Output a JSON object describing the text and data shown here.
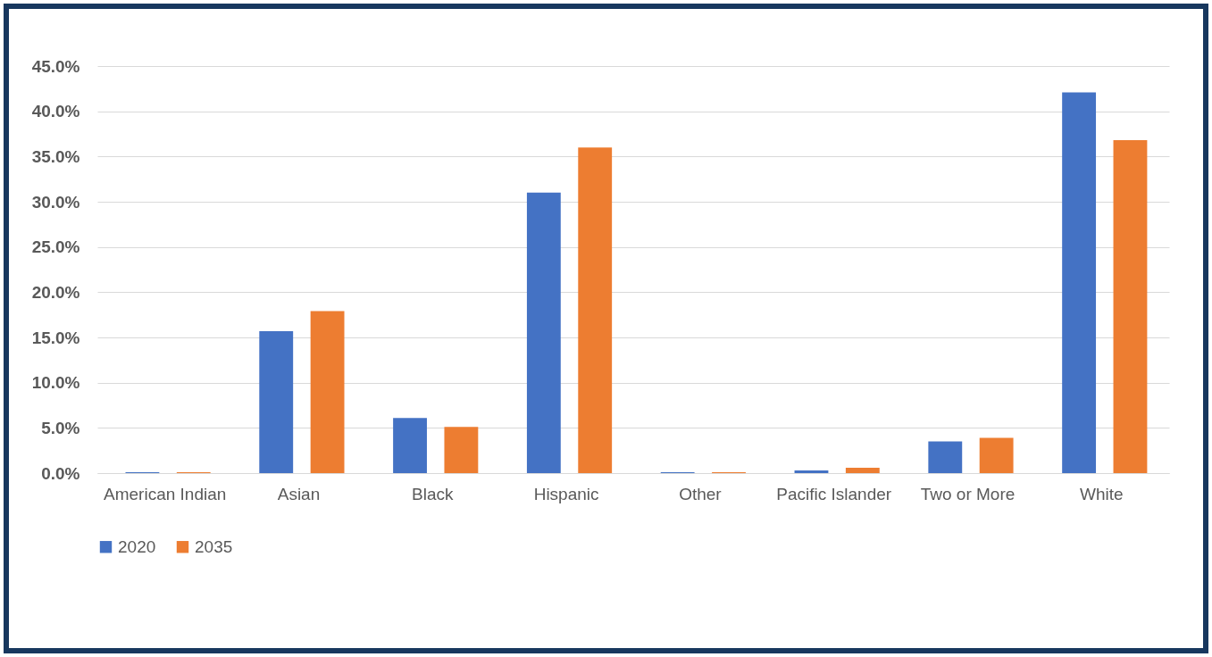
{
  "chart_data": {
    "type": "bar",
    "categories": [
      "American Indian",
      "Asian",
      "Black",
      "Hispanic",
      "Other",
      "Pacific Islander",
      "Two or More",
      "White"
    ],
    "series": [
      {
        "name": "2020",
        "color": "#4472c4",
        "values": [
          0.1,
          15.7,
          6.1,
          31.0,
          0.1,
          0.3,
          3.5,
          42.1
        ]
      },
      {
        "name": "2035",
        "color": "#ed7d31",
        "values": [
          0.1,
          17.9,
          5.1,
          36.0,
          0.1,
          0.6,
          3.9,
          36.8
        ]
      }
    ],
    "ylim": [
      0,
      45
    ],
    "yticks": [
      {
        "value": 0,
        "label": "0.0%"
      },
      {
        "value": 5,
        "label": "5.0%"
      },
      {
        "value": 10,
        "label": "10.0%"
      },
      {
        "value": 15,
        "label": "15.0%"
      },
      {
        "value": 20,
        "label": "20.0%"
      },
      {
        "value": 25,
        "label": "25.0%"
      },
      {
        "value": 30,
        "label": "30.0%"
      },
      {
        "value": 35,
        "label": "35.0%"
      },
      {
        "value": 40,
        "label": "40.0%"
      },
      {
        "value": 45,
        "label": "45.0%"
      }
    ],
    "grid": true,
    "legend": "bottom"
  }
}
